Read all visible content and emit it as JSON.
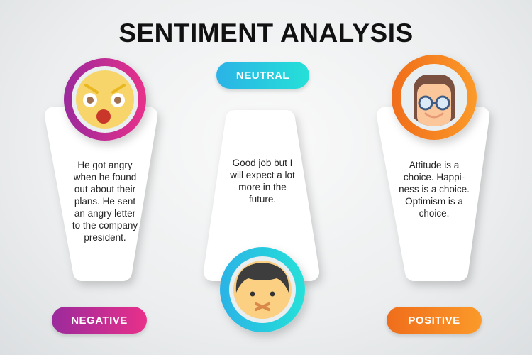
{
  "title": "SENTIMENT ANALYSIS",
  "colors": {
    "negative": [
      "#9b2a9c",
      "#e8308a"
    ],
    "neutral": [
      "#2bb3e6",
      "#25e0d8"
    ],
    "positive": [
      "#f47a1f",
      "#fb9a2a"
    ]
  },
  "cards": [
    {
      "label": "NEGATIVE",
      "icon": "angry-face-icon",
      "lines": [
        "He got angry",
        "when he found",
        "out about their",
        "plans. He sent",
        "an angry letter",
        "to the company",
        "president."
      ]
    },
    {
      "label": "NEUTRAL",
      "icon": "silenced-boy-face-icon",
      "lines": [
        "Good job but I",
        "will expect a lot",
        "more in the",
        "future."
      ]
    },
    {
      "label": "POSITIVE",
      "icon": "smiling-woman-glasses-icon",
      "lines": [
        "Attitude is a",
        "choice. Happi-",
        "ness is a choice.",
        "Optimism is a",
        "choice."
      ]
    }
  ]
}
